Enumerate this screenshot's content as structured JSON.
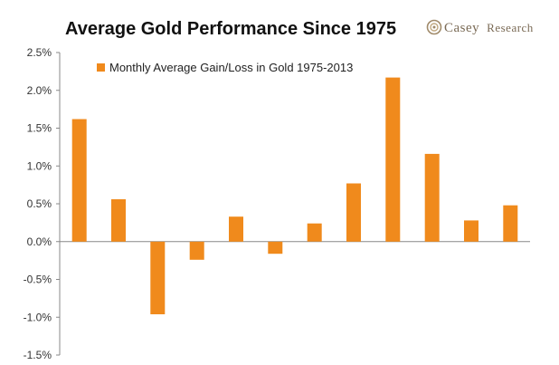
{
  "header": {
    "brand_logo_icon": "casey-research-logo-icon",
    "brand_name_main": "Casey",
    "brand_name_sub": "Research"
  },
  "colors": {
    "bar": "#f08a1c",
    "axis": "#888888",
    "text": "#222222",
    "brand": "#7a6a55"
  },
  "chart_data": {
    "type": "bar",
    "title": "Average Gold Performance Since 1975",
    "xlabel": "",
    "ylabel": "",
    "series": [
      {
        "name": "Monthly Average Gain/Loss in Gold 1975-2013",
        "values": [
          1.62,
          0.56,
          -0.96,
          -0.24,
          0.33,
          -0.16,
          0.24,
          0.77,
          2.17,
          1.16,
          0.28,
          0.48
        ]
      }
    ],
    "ylim": [
      -1.5,
      2.5
    ],
    "y_ticks": [
      "2.5%",
      "2.0%",
      "1.5%",
      "1.0%",
      "0.5%",
      "0.0%",
      "-0.5%",
      "-1.0%",
      "-1.5%"
    ],
    "y_tick_values": [
      2.5,
      2.0,
      1.5,
      1.0,
      0.5,
      0.0,
      -0.5,
      -1.0,
      -1.5
    ],
    "grid": false,
    "legend_position": "top-left"
  }
}
